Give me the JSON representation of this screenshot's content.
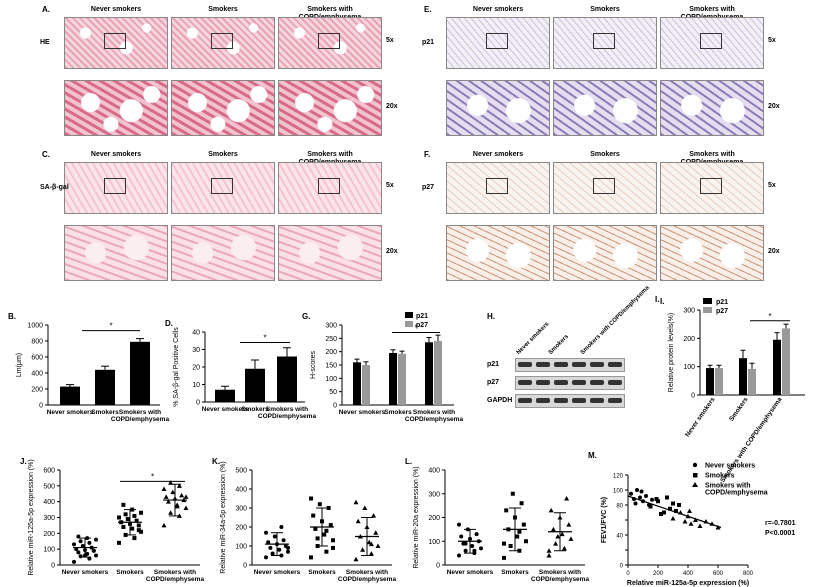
{
  "panels": {
    "A": {
      "label": "A.",
      "groups": [
        "Never smokers",
        "Smokers",
        "Smokers with COPD/emphysema"
      ],
      "stain": "HE",
      "mag": [
        "5x",
        "20x"
      ]
    },
    "C": {
      "label": "C.",
      "groups": [
        "Never smokers",
        "Smokers",
        "Smokers with COPD/emphysema"
      ],
      "stain": "SA-β-gal",
      "mag": [
        "5x",
        "20x"
      ]
    },
    "E": {
      "label": "E.",
      "groups": [
        "Never smokers",
        "Smokers",
        "Smokers with COPD/emphysema"
      ],
      "stain": "p21",
      "mag": [
        "5x",
        "20x"
      ]
    },
    "F": {
      "label": "F.",
      "groups": [
        "Never smokers",
        "Smokers",
        "Smokers with COPD/emphysema"
      ],
      "stain": "p27",
      "mag": [
        "5x",
        "20x"
      ]
    },
    "H": {
      "label": "H.",
      "lanes": [
        "Never smokers",
        "Smokers",
        "Smokers with COPD/emphysema"
      ],
      "bands": [
        "p21",
        "p27",
        "GAPDH"
      ]
    }
  },
  "chart_data": [
    {
      "id": "B",
      "label": "B.",
      "type": "bar",
      "categories": [
        "Never smokers",
        "Smokers",
        "Smokers with COPD/emphysema"
      ],
      "values": [
        230,
        440,
        790
      ],
      "errors": [
        25,
        45,
        40
      ],
      "ylabel": "Lm(μm)",
      "ylim": [
        0,
        1000
      ],
      "yticks": [
        0,
        200,
        400,
        600,
        800,
        1000
      ],
      "significance": "*",
      "colors": {
        "bar": "#000000"
      }
    },
    {
      "id": "D",
      "label": "D.",
      "type": "bar",
      "categories": [
        "Never smokers",
        "Smokers",
        "Smokers with COPD/emphysema"
      ],
      "values": [
        7,
        19,
        26
      ],
      "errors": [
        2,
        5,
        5
      ],
      "ylabel": "% SA-β-gal Positive Cells",
      "ylim": [
        0,
        40
      ],
      "yticks": [
        0,
        10,
        20,
        30,
        40
      ],
      "significance": "*",
      "colors": {
        "bar": "#000000"
      }
    },
    {
      "id": "G",
      "label": "G.",
      "type": "bar",
      "categories": [
        "Never smokers",
        "Smokers",
        "Smokers with COPD/emphysema"
      ],
      "series": [
        {
          "name": "p21",
          "values": [
            160,
            195,
            235
          ],
          "errors": [
            12,
            12,
            18
          ],
          "color": "#000000"
        },
        {
          "name": "p27",
          "values": [
            150,
            192,
            240
          ],
          "errors": [
            12,
            10,
            22
          ],
          "color": "#999999"
        }
      ],
      "ylabel": "H-scores",
      "ylim": [
        0,
        300
      ],
      "yticks": [
        0,
        50,
        100,
        150,
        200,
        250,
        300
      ],
      "significance": "*",
      "legend": "top-right"
    },
    {
      "id": "I",
      "label": "I.",
      "type": "bar",
      "categories": [
        "Never smokers",
        "Smokers",
        "Smokers with COPD/emphysema"
      ],
      "series": [
        {
          "name": "p21",
          "values": [
            95,
            130,
            195
          ],
          "errors": [
            10,
            28,
            25
          ],
          "color": "#000000"
        },
        {
          "name": "p27",
          "values": [
            95,
            92,
            235
          ],
          "errors": [
            10,
            20,
            15
          ],
          "color": "#999999"
        }
      ],
      "ylabel": "Relative protein levels(%)",
      "ylim": [
        0,
        300
      ],
      "yticks": [
        0,
        100,
        200,
        300
      ],
      "significance": "*",
      "legend": "top-left"
    },
    {
      "id": "J",
      "label": "J.",
      "type": "scatter",
      "categories": [
        "Never smokers",
        "Smokers",
        "Smokers with COPD/emphysema"
      ],
      "ylabel": "Relative miR-125a-5p expression (%)",
      "ylim": [
        0,
        600
      ],
      "yticks": [
        0,
        100,
        200,
        300,
        400,
        500,
        600
      ],
      "significance": "*",
      "groups": [
        {
          "mean": 110,
          "sd": 60,
          "values": [
            20,
            40,
            55,
            60,
            70,
            80,
            90,
            95,
            100,
            110,
            120,
            130,
            140,
            150,
            160,
            170,
            180,
            90,
            60
          ]
        },
        {
          "mean": 270,
          "sd": 80,
          "values": [
            140,
            170,
            190,
            210,
            230,
            240,
            250,
            260,
            270,
            280,
            290,
            300,
            310,
            320,
            330,
            350,
            380,
            220
          ]
        },
        {
          "mean": 410,
          "sd": 100,
          "values": [
            250,
            310,
            330,
            360,
            380,
            400,
            410,
            420,
            430,
            440,
            460,
            480,
            500,
            520,
            430,
            370
          ]
        }
      ]
    },
    {
      "id": "K",
      "label": "K.",
      "type": "scatter",
      "categories": [
        "Never smokers",
        "Smokers",
        "Smokers with COPD/emphysema"
      ],
      "ylabel": "Relative miR-34a-5p expression (%)",
      "ylim": [
        0,
        500
      ],
      "yticks": [
        0,
        100,
        200,
        300,
        400,
        500
      ],
      "groups": [
        {
          "mean": 110,
          "sd": 60,
          "values": [
            40,
            50,
            60,
            70,
            80,
            90,
            100,
            110,
            120,
            130,
            150,
            170,
            200,
            60,
            90
          ]
        },
        {
          "mean": 200,
          "sd": 100,
          "values": [
            40,
            70,
            100,
            130,
            160,
            190,
            210,
            230,
            260,
            300,
            320,
            350,
            180,
            140,
            90
          ]
        },
        {
          "mean": 150,
          "sd": 100,
          "values": [
            30,
            60,
            80,
            100,
            120,
            150,
            170,
            200,
            230,
            260,
            300,
            330,
            110
          ]
        }
      ]
    },
    {
      "id": "L",
      "label": "L.",
      "type": "scatter",
      "categories": [
        "Never smokers",
        "Smokers",
        "Smokers with COPD/emphysema"
      ],
      "ylabel": "Relative miR-20a expression (%)",
      "ylim": [
        0,
        400
      ],
      "yticks": [
        0,
        100,
        200,
        300,
        400
      ],
      "groups": [
        {
          "mean": 100,
          "sd": 50,
          "values": [
            40,
            50,
            60,
            70,
            80,
            90,
            100,
            110,
            120,
            130,
            150,
            170,
            60,
            90
          ]
        },
        {
          "mean": 150,
          "sd": 90,
          "values": [
            30,
            60,
            80,
            100,
            120,
            150,
            170,
            200,
            230,
            260,
            300,
            90,
            140
          ]
        },
        {
          "mean": 140,
          "sd": 80,
          "values": [
            40,
            70,
            90,
            110,
            130,
            150,
            170,
            200,
            230,
            280,
            120,
            60
          ]
        }
      ]
    },
    {
      "id": "M",
      "label": "M.",
      "type": "scatter",
      "xlabel": "Relative  miR-125a-5p expression (%)",
      "ylabel": "FEV1/FVC (%)",
      "xlim": [
        0,
        800
      ],
      "ylim": [
        0,
        120
      ],
      "xticks": [
        0,
        200,
        400,
        600,
        800
      ],
      "yticks": [
        0,
        20,
        40,
        60,
        80,
        100,
        120
      ],
      "legend": [
        "Never smokers",
        "Smokers",
        "Smokers with COPD/emphysema"
      ],
      "legend_position": "top-right",
      "stats": [
        "r=-0.7801",
        "P<0.0001"
      ],
      "regression": {
        "x": [
          0,
          620
        ],
        "y": [
          92,
          50
        ]
      },
      "series": [
        {
          "name": "Never smokers",
          "marker": "circle",
          "points": [
            [
              20,
              95
            ],
            [
              40,
              88
            ],
            [
              60,
              100
            ],
            [
              80,
              90
            ],
            [
              100,
              85
            ],
            [
              120,
              92
            ],
            [
              140,
              80
            ],
            [
              50,
              82
            ],
            [
              90,
              98
            ],
            [
              160,
              87
            ]
          ]
        },
        {
          "name": "Smokers",
          "marker": "square",
          "points": [
            [
              150,
              78
            ],
            [
              200,
              85
            ],
            [
              240,
              70
            ],
            [
              260,
              90
            ],
            [
              280,
              75
            ],
            [
              300,
              82
            ],
            [
              320,
              72
            ],
            [
              340,
              80
            ],
            [
              220,
              68
            ],
            [
              190,
              88
            ]
          ]
        },
        {
          "name": "Smokers with COPD/emphysema",
          "marker": "triangle",
          "points": [
            [
              300,
              62
            ],
            [
              350,
              70
            ],
            [
              380,
              58
            ],
            [
              400,
              65
            ],
            [
              420,
              55
            ],
            [
              450,
              60
            ],
            [
              480,
              52
            ],
            [
              520,
              58
            ],
            [
              560,
              55
            ],
            [
              600,
              50
            ],
            [
              410,
              72
            ]
          ]
        }
      ]
    }
  ]
}
